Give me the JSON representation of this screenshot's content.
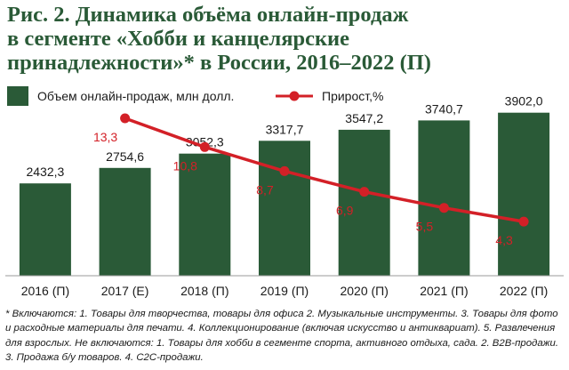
{
  "title_lines": [
    "Рис. 2. Динамика объёма онлайн-продаж",
    "в сегменте «Хобби и канцелярские",
    "принадлежности»* в России, 2016–2022 (П)"
  ],
  "footnote": "* Включаются: 1. Товары для творчества, товары для офиса 2. Музыкальные инструменты. 3. Товары для фото и расходные материалы для печати. 4. Коллекционирование (включая искусство и антиквариат). 5. Развлечения для взрослых. Не включаются: 1. Товары для хобби в сегменте спорта, активного отдыха, сада. 2. B2B-продажи. 3. Продажа б/у товаров. 4. C2C-продажи.",
  "chart_data": {
    "type": "bar",
    "categories": [
      "2016 (П)",
      "2017 (Е)",
      "2018 (П)",
      "2019 (П)",
      "2020 (П)",
      "2021 (П)",
      "2022 (П)"
    ],
    "series": [
      {
        "name": "Объем онлайн-продаж, млн долл.",
        "type": "bar",
        "values": [
          2432.3,
          2754.6,
          3052.3,
          3317.7,
          3547.2,
          3740.7,
          3902.0
        ],
        "labels": [
          "2432,3",
          "2754,6",
          "3052,3",
          "3317,7",
          "3547,2",
          "3740,7",
          "3902,0"
        ],
        "color": "#2a5a37"
      },
      {
        "name": "Прирост,%",
        "type": "line",
        "values": [
          null,
          13.3,
          10.8,
          8.7,
          6.9,
          5.5,
          4.3
        ],
        "labels": [
          "",
          "13,3",
          "10,8",
          "8,7",
          "6,9",
          "5,5",
          "4,3"
        ],
        "color": "#d32027"
      }
    ],
    "legend": "top",
    "grid": false
  }
}
